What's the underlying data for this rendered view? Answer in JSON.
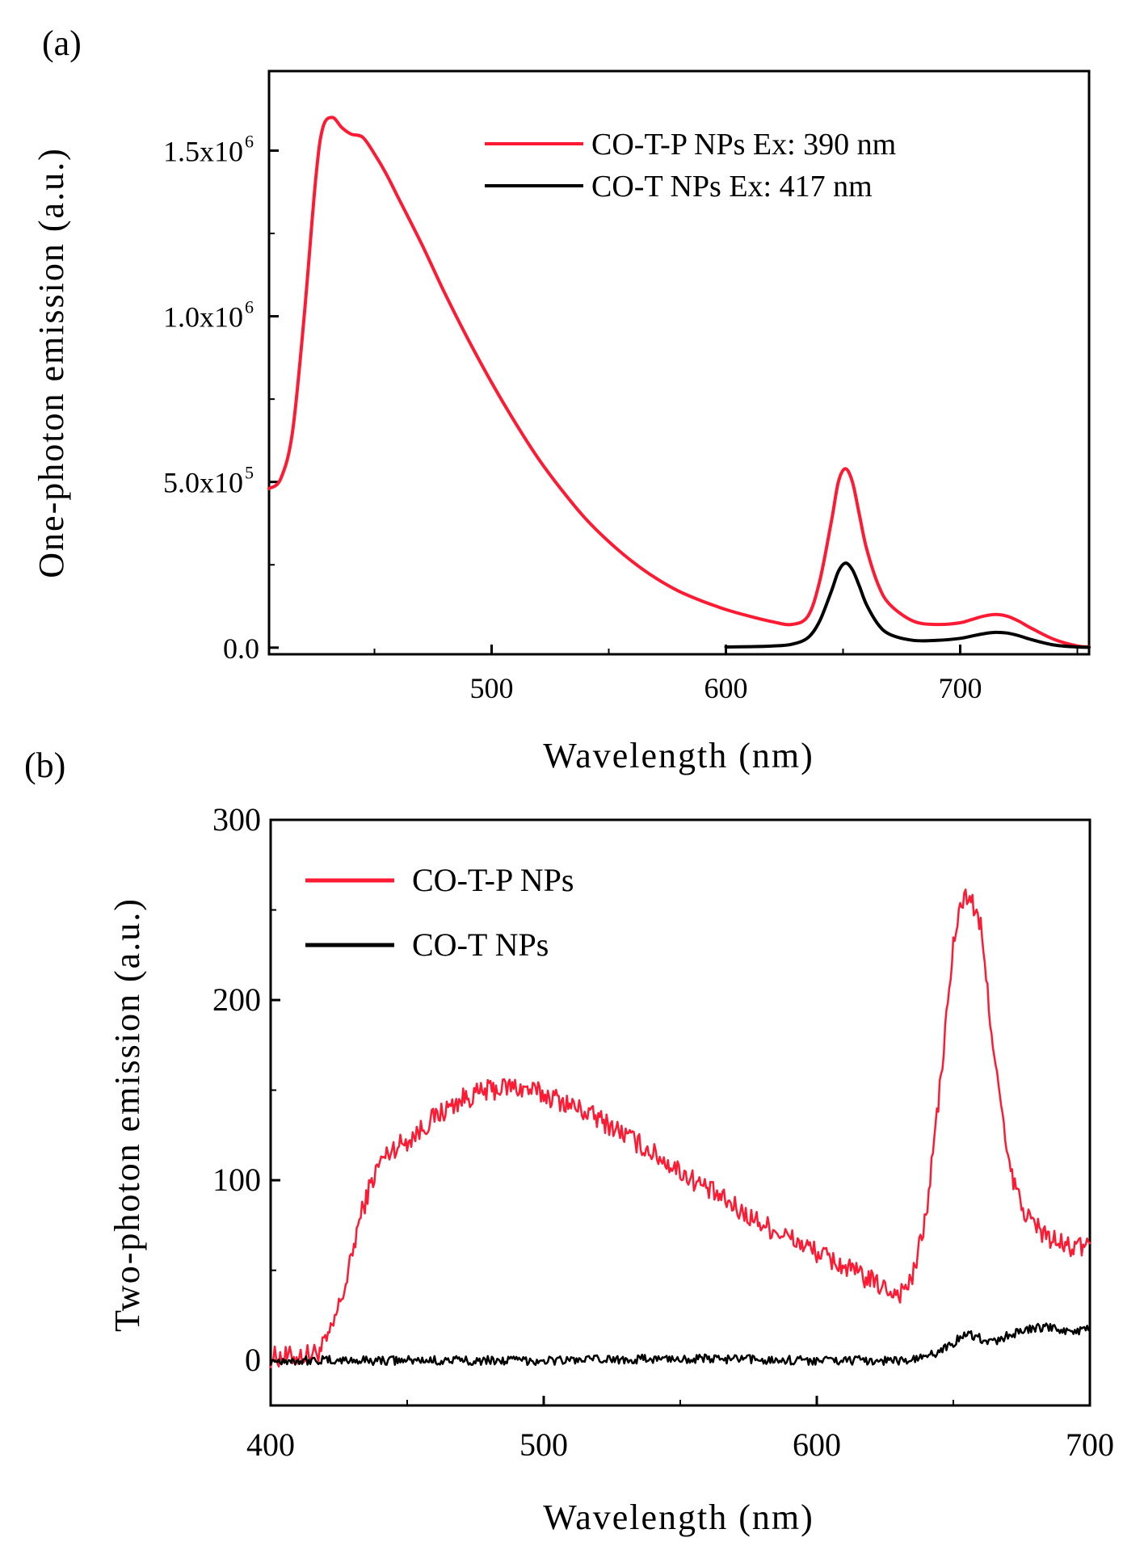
{
  "chart_data": [
    {
      "panel_label": "(a)",
      "type": "line",
      "xlabel": "Wavelength (nm)",
      "ylabel": "One-photon emission (a.u.)",
      "xlim": [
        405,
        755
      ],
      "ylim": [
        -20000,
        1740000
      ],
      "x_ticks": [
        {
          "value": 500,
          "label": "500"
        },
        {
          "value": 600,
          "label": "600"
        },
        {
          "value": 700,
          "label": "700"
        }
      ],
      "y_ticks": [
        {
          "value": 0,
          "label": "0.0"
        },
        {
          "value": 500000,
          "label": "5.0x10",
          "exp": "5"
        },
        {
          "value": 1000000,
          "label": "1.0x10",
          "exp": "6"
        },
        {
          "value": 1500000,
          "label": "1.5x10",
          "exp": "6"
        }
      ],
      "legend_position": "top-right",
      "series": [
        {
          "name": "CO-T-P NPs Ex: 390 nm",
          "color": "#ff1a33",
          "x": [
            405,
            410,
            415,
            420,
            425,
            428,
            432,
            436,
            440,
            445,
            450,
            455,
            460,
            470,
            480,
            490,
            500,
            510,
            520,
            530,
            540,
            550,
            560,
            570,
            580,
            590,
            600,
            610,
            620,
            628,
            635,
            640,
            645,
            648,
            651,
            654,
            657,
            660,
            665,
            670,
            680,
            690,
            700,
            705,
            710,
            715,
            720,
            725,
            730,
            740,
            750,
            755
          ],
          "y": [
            480000,
            510000,
            650000,
            1000000,
            1420000,
            1570000,
            1600000,
            1570000,
            1550000,
            1540000,
            1490000,
            1430000,
            1360000,
            1220000,
            1070000,
            930000,
            800000,
            680000,
            570000,
            475000,
            390000,
            320000,
            260000,
            210000,
            170000,
            140000,
            115000,
            95000,
            78000,
            70000,
            95000,
            200000,
            380000,
            500000,
            540000,
            500000,
            400000,
            300000,
            190000,
            130000,
            80000,
            70000,
            75000,
            85000,
            95000,
            100000,
            95000,
            80000,
            60000,
            25000,
            5000,
            2000
          ]
        },
        {
          "name": "CO-T NPs Ex: 417 nm",
          "color": "#000000",
          "x": [
            600,
            610,
            620,
            628,
            635,
            640,
            645,
            648,
            651,
            654,
            657,
            660,
            665,
            670,
            680,
            690,
            700,
            705,
            710,
            715,
            720,
            725,
            730,
            740,
            750,
            755
          ],
          "y": [
            2000,
            3000,
            5000,
            10000,
            30000,
            80000,
            170000,
            230000,
            255000,
            235000,
            185000,
            130000,
            70000,
            40000,
            22000,
            22000,
            28000,
            35000,
            42000,
            46000,
            44000,
            36000,
            25000,
            8000,
            2000,
            1000
          ]
        }
      ]
    },
    {
      "panel_label": "(b)",
      "type": "line",
      "xlabel": "Wavelength (nm)",
      "ylabel": "Two-photon emission (a.u.)",
      "xlim": [
        400,
        700
      ],
      "ylim": [
        -25,
        300
      ],
      "x_ticks": [
        {
          "value": 400,
          "label": "400"
        },
        {
          "value": 500,
          "label": "500"
        },
        {
          "value": 600,
          "label": "600"
        },
        {
          "value": 700,
          "label": "700"
        }
      ],
      "y_ticks": [
        {
          "value": 0,
          "label": "0"
        },
        {
          "value": 100,
          "label": "100"
        },
        {
          "value": 200,
          "label": "200"
        },
        {
          "value": 300,
          "label": "300"
        }
      ],
      "legend_position": "top-left",
      "series": [
        {
          "name": "CO-T-P NPs",
          "color": "#ff1a33",
          "x": [
            400,
            410,
            418,
            422,
            428,
            432,
            436,
            440,
            445,
            450,
            455,
            460,
            470,
            480,
            488,
            495,
            505,
            515,
            525,
            535,
            545,
            555,
            565,
            575,
            585,
            595,
            605,
            615,
            625,
            630,
            635,
            640,
            645,
            650,
            653,
            656,
            660,
            665,
            670,
            675,
            680,
            685,
            690,
            695,
            700
          ],
          "y": [
            2,
            2,
            5,
            15,
            45,
            75,
            95,
            110,
            118,
            122,
            128,
            135,
            145,
            150,
            152,
            150,
            145,
            138,
            130,
            120,
            110,
            100,
            90,
            80,
            72,
            64,
            56,
            48,
            40,
            37,
            45,
            80,
            150,
            230,
            255,
            258,
            240,
            170,
            110,
            85,
            75,
            68,
            64,
            62,
            65
          ]
        },
        {
          "name": "CO-T NPs",
          "color": "#000000",
          "x": [
            400,
            450,
            500,
            550,
            600,
            620,
            635,
            640,
            645,
            650,
            655,
            660,
            665,
            670,
            675,
            680,
            685,
            690,
            695,
            700
          ],
          "y": [
            0,
            0,
            0,
            1,
            0,
            0,
            0,
            2,
            5,
            10,
            15,
            12,
            10,
            14,
            16,
            18,
            18,
            17,
            16,
            17
          ]
        }
      ]
    }
  ]
}
